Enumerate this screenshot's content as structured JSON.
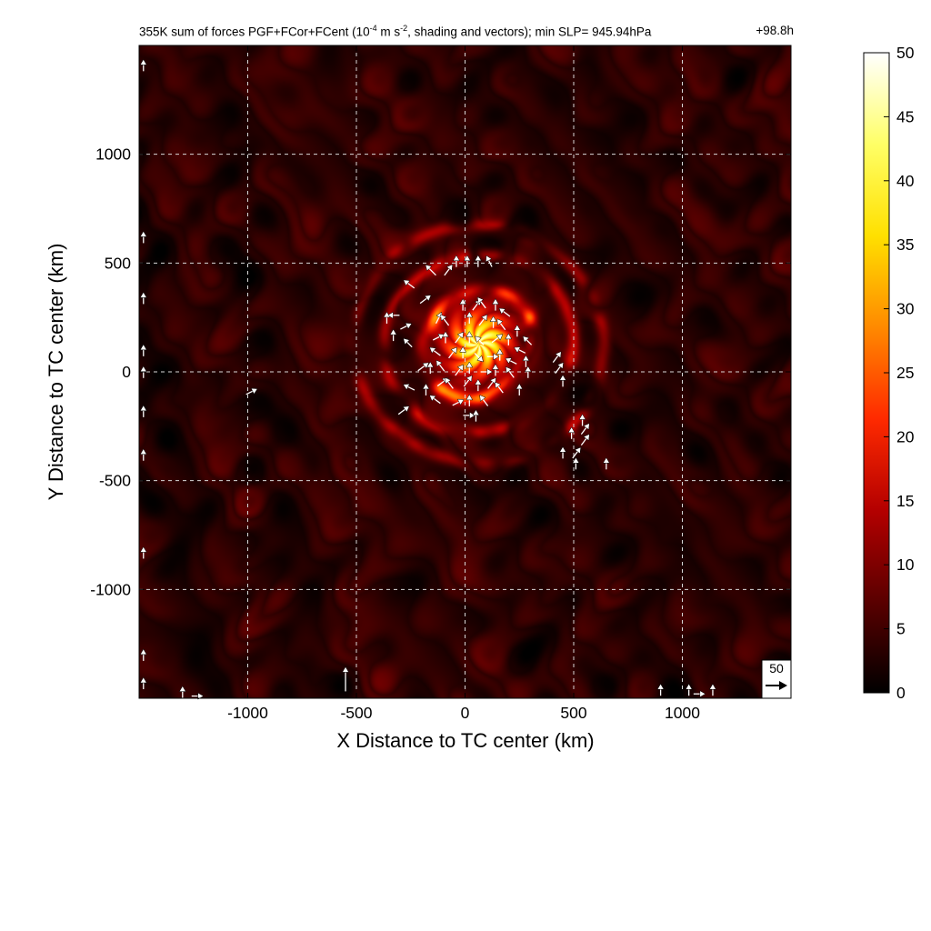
{
  "chart_data": {
    "type": "heatmap",
    "title_prefix": "355K sum of forces PGF+FCor+FCent (10",
    "title_exp1": "-4",
    "title_mid": " m s",
    "title_exp2": "-2",
    "title_suffix": ", shading and vectors); min SLP= 945.94hPa",
    "time_label": "+98.8h",
    "xlabel": "X Distance to TC center (km)",
    "ylabel": "Y Distance to TC center (km)",
    "xlim": [
      -1500,
      1500
    ],
    "ylim": [
      -1500,
      1500
    ],
    "x_ticks": [
      -1000,
      -500,
      0,
      500,
      1000
    ],
    "y_ticks": [
      -1000,
      -500,
      0,
      500,
      1000
    ],
    "x_tick_labels": [
      "-1000",
      "-500",
      "0",
      "500",
      "1000"
    ],
    "y_tick_labels": [
      "-1000",
      "-500",
      "0",
      "500",
      "1000"
    ],
    "grid": true,
    "colorbar": {
      "min": 0,
      "max": 50,
      "ticks": [
        0,
        5,
        10,
        15,
        20,
        25,
        30,
        35,
        40,
        45,
        50
      ],
      "tick_labels": [
        "0",
        "5",
        "10",
        "15",
        "20",
        "25",
        "30",
        "35",
        "40",
        "45",
        "50"
      ],
      "colormap": "hot",
      "stops": [
        "#000000",
        "#5a0000",
        "#b40000",
        "#ff2a00",
        "#ff8a00",
        "#ffe000",
        "#ffff66",
        "#ffffff"
      ]
    },
    "reference_vector_label": "50",
    "features": {
      "eyewall_center": [
        60,
        130
      ],
      "inner_core_peak": 45,
      "ring_radii_km": [
        250,
        420,
        560
      ],
      "ring_strength": [
        22,
        12,
        10
      ],
      "background_level": 4
    },
    "vectors": [
      {
        "x": -140,
        "y": 450,
        "u": -8,
        "v": 8
      },
      {
        "x": -90,
        "y": 450,
        "u": 6,
        "v": 8
      },
      {
        "x": -40,
        "y": 490,
        "u": 0,
        "v": 8
      },
      {
        "x": 10,
        "y": 490,
        "u": 0,
        "v": 8
      },
      {
        "x": 60,
        "y": 490,
        "u": 0,
        "v": 8
      },
      {
        "x": 120,
        "y": 490,
        "u": -4,
        "v": 8
      },
      {
        "x": -240,
        "y": 390,
        "u": -8,
        "v": 6
      },
      {
        "x": -200,
        "y": 320,
        "u": 8,
        "v": 6
      },
      {
        "x": -310,
        "y": 260,
        "u": -8,
        "v": 0
      },
      {
        "x": -360,
        "y": 230,
        "u": 0,
        "v": 8
      },
      {
        "x": -290,
        "y": 200,
        "u": 8,
        "v": 4
      },
      {
        "x": -330,
        "y": 150,
        "u": 0,
        "v": 8
      },
      {
        "x": -250,
        "y": 120,
        "u": -6,
        "v": 6
      },
      {
        "x": -10,
        "y": 290,
        "u": 0,
        "v": 8
      },
      {
        "x": 40,
        "y": 290,
        "u": 6,
        "v": 8
      },
      {
        "x": 90,
        "y": 300,
        "u": -6,
        "v": 8
      },
      {
        "x": 140,
        "y": 290,
        "u": 0,
        "v": 8
      },
      {
        "x": 200,
        "y": 260,
        "u": -8,
        "v": 6
      },
      {
        "x": -130,
        "y": 230,
        "u": 4,
        "v": 8
      },
      {
        "x": -80,
        "y": 220,
        "u": -6,
        "v": 8
      },
      {
        "x": 20,
        "y": 230,
        "u": 0,
        "v": 8
      },
      {
        "x": 70,
        "y": 220,
        "u": 6,
        "v": 8
      },
      {
        "x": 130,
        "y": 210,
        "u": 0,
        "v": 8
      },
      {
        "x": 180,
        "y": 200,
        "u": -6,
        "v": 8
      },
      {
        "x": 240,
        "y": 170,
        "u": 0,
        "v": 8
      },
      {
        "x": 300,
        "y": 130,
        "u": -6,
        "v": 6
      },
      {
        "x": -140,
        "y": 150,
        "u": 8,
        "v": 4
      },
      {
        "x": -90,
        "y": 140,
        "u": 0,
        "v": 8
      },
      {
        "x": -40,
        "y": 140,
        "u": 6,
        "v": 8
      },
      {
        "x": 20,
        "y": 140,
        "u": 0,
        "v": 8
      },
      {
        "x": 80,
        "y": 130,
        "u": -6,
        "v": 6
      },
      {
        "x": 130,
        "y": 140,
        "u": 8,
        "v": 6
      },
      {
        "x": 200,
        "y": 130,
        "u": 0,
        "v": 8
      },
      {
        "x": 270,
        "y": 90,
        "u": -8,
        "v": 4
      },
      {
        "x": -120,
        "y": 80,
        "u": -8,
        "v": 6
      },
      {
        "x": -70,
        "y": 70,
        "u": 6,
        "v": 8
      },
      {
        "x": -10,
        "y": 70,
        "u": 0,
        "v": 8
      },
      {
        "x": 50,
        "y": 80,
        "u": 6,
        "v": -6
      },
      {
        "x": 110,
        "y": 70,
        "u": 8,
        "v": 0
      },
      {
        "x": 160,
        "y": 60,
        "u": 0,
        "v": 8
      },
      {
        "x": 230,
        "y": 40,
        "u": -8,
        "v": 4
      },
      {
        "x": 280,
        "y": 30,
        "u": 0,
        "v": 8
      },
      {
        "x": 410,
        "y": 50,
        "u": 6,
        "v": 8
      },
      {
        "x": -210,
        "y": 10,
        "u": 8,
        "v": 6
      },
      {
        "x": -160,
        "y": 0,
        "u": 0,
        "v": 8
      },
      {
        "x": -100,
        "y": 10,
        "u": -6,
        "v": 8
      },
      {
        "x": -40,
        "y": -10,
        "u": 6,
        "v": 8
      },
      {
        "x": 20,
        "y": 0,
        "u": 0,
        "v": 8
      },
      {
        "x": 80,
        "y": 0,
        "u": 8,
        "v": 0
      },
      {
        "x": 140,
        "y": -10,
        "u": 0,
        "v": 8
      },
      {
        "x": 220,
        "y": -20,
        "u": -6,
        "v": 8
      },
      {
        "x": 290,
        "y": -20,
        "u": 0,
        "v": 8
      },
      {
        "x": 420,
        "y": 0,
        "u": 6,
        "v": 8
      },
      {
        "x": 450,
        "y": -60,
        "u": 0,
        "v": 8
      },
      {
        "x": -240,
        "y": -80,
        "u": -8,
        "v": 4
      },
      {
        "x": -180,
        "y": -100,
        "u": 0,
        "v": 8
      },
      {
        "x": -120,
        "y": -60,
        "u": 8,
        "v": 6
      },
      {
        "x": -60,
        "y": -70,
        "u": -6,
        "v": 8
      },
      {
        "x": 0,
        "y": -60,
        "u": 6,
        "v": 8
      },
      {
        "x": 60,
        "y": -80,
        "u": 0,
        "v": 8
      },
      {
        "x": 110,
        "y": -70,
        "u": 6,
        "v": 8
      },
      {
        "x": 170,
        "y": -90,
        "u": -6,
        "v": 8
      },
      {
        "x": 250,
        "y": -100,
        "u": 0,
        "v": 8
      },
      {
        "x": -300,
        "y": -190,
        "u": 8,
        "v": 6
      },
      {
        "x": -120,
        "y": -140,
        "u": -8,
        "v": 6
      },
      {
        "x": -50,
        "y": -150,
        "u": 8,
        "v": 4
      },
      {
        "x": 20,
        "y": -150,
        "u": 0,
        "v": 8
      },
      {
        "x": 100,
        "y": -150,
        "u": -6,
        "v": 8
      },
      {
        "x": 0,
        "y": -200,
        "u": 8,
        "v": 0
      },
      {
        "x": 50,
        "y": -220,
        "u": 0,
        "v": 8
      },
      {
        "x": 540,
        "y": -240,
        "u": 0,
        "v": 8
      },
      {
        "x": 540,
        "y": -280,
        "u": 6,
        "v": 8
      },
      {
        "x": 490,
        "y": -300,
        "u": 0,
        "v": 8
      },
      {
        "x": 540,
        "y": -330,
        "u": 6,
        "v": 8
      },
      {
        "x": 450,
        "y": -390,
        "u": 0,
        "v": 8
      },
      {
        "x": 500,
        "y": -390,
        "u": 6,
        "v": 8
      },
      {
        "x": 510,
        "y": -440,
        "u": 0,
        "v": 8
      },
      {
        "x": 650,
        "y": -440,
        "u": 0,
        "v": 8
      },
      {
        "x": -1000,
        "y": -100,
        "u": 8,
        "v": 4
      },
      {
        "x": -1480,
        "y": 1390,
        "u": 0,
        "v": 8
      },
      {
        "x": -1480,
        "y": 600,
        "u": 0,
        "v": 8
      },
      {
        "x": -1480,
        "y": 320,
        "u": 0,
        "v": 8
      },
      {
        "x": -1480,
        "y": 80,
        "u": 0,
        "v": 8
      },
      {
        "x": -1480,
        "y": -20,
        "u": 0,
        "v": 8
      },
      {
        "x": -1480,
        "y": -200,
        "u": 0,
        "v": 8
      },
      {
        "x": -1480,
        "y": -400,
        "u": 0,
        "v": 8
      },
      {
        "x": -1480,
        "y": -850,
        "u": 0,
        "v": 8
      },
      {
        "x": -1480,
        "y": -1320,
        "u": 0,
        "v": 8
      },
      {
        "x": -1480,
        "y": -1450,
        "u": 0,
        "v": 8
      },
      {
        "x": -550,
        "y": -1460,
        "u": 0,
        "v": 22
      },
      {
        "x": -1300,
        "y": -1490,
        "u": 0,
        "v": 8
      },
      {
        "x": -1250,
        "y": -1490,
        "u": 8,
        "v": 0
      },
      {
        "x": 900,
        "y": -1480,
        "u": 0,
        "v": 8
      },
      {
        "x": 1030,
        "y": -1480,
        "u": 0,
        "v": 8
      },
      {
        "x": 1060,
        "y": -1480,
        "u": 8,
        "v": 0
      },
      {
        "x": 1140,
        "y": -1480,
        "u": 0,
        "v": 8
      }
    ]
  }
}
